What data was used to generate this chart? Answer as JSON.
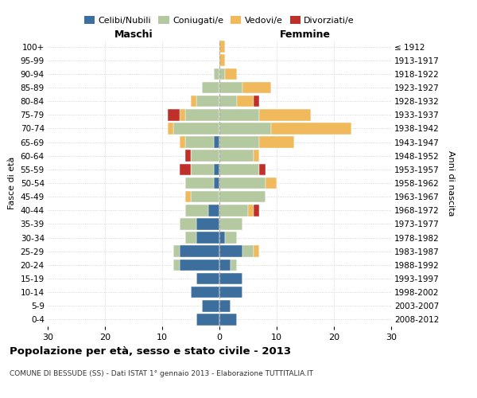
{
  "age_groups": [
    "0-4",
    "5-9",
    "10-14",
    "15-19",
    "20-24",
    "25-29",
    "30-34",
    "35-39",
    "40-44",
    "45-49",
    "50-54",
    "55-59",
    "60-64",
    "65-69",
    "70-74",
    "75-79",
    "80-84",
    "85-89",
    "90-94",
    "95-99",
    "100+"
  ],
  "birth_years": [
    "2008-2012",
    "2003-2007",
    "1998-2002",
    "1993-1997",
    "1988-1992",
    "1983-1987",
    "1978-1982",
    "1973-1977",
    "1968-1972",
    "1963-1967",
    "1958-1962",
    "1953-1957",
    "1948-1952",
    "1943-1947",
    "1938-1942",
    "1933-1937",
    "1928-1932",
    "1923-1927",
    "1918-1922",
    "1913-1917",
    "≤ 1912"
  ],
  "males": {
    "celibi": [
      4,
      3,
      5,
      4,
      7,
      7,
      4,
      4,
      2,
      0,
      1,
      1,
      0,
      1,
      0,
      0,
      0,
      0,
      0,
      0,
      0
    ],
    "coniugati": [
      0,
      0,
      0,
      0,
      1,
      1,
      2,
      3,
      4,
      5,
      5,
      4,
      5,
      5,
      8,
      6,
      4,
      3,
      1,
      0,
      0
    ],
    "vedovi": [
      0,
      0,
      0,
      0,
      0,
      0,
      0,
      0,
      0,
      1,
      0,
      0,
      0,
      1,
      1,
      1,
      1,
      0,
      0,
      0,
      0
    ],
    "divorziati": [
      0,
      0,
      0,
      0,
      0,
      0,
      0,
      0,
      0,
      0,
      0,
      2,
      1,
      0,
      0,
      2,
      0,
      0,
      0,
      0,
      0
    ]
  },
  "females": {
    "nubili": [
      3,
      2,
      4,
      4,
      2,
      4,
      1,
      0,
      0,
      0,
      0,
      0,
      0,
      0,
      0,
      0,
      0,
      0,
      0,
      0,
      0
    ],
    "coniugate": [
      0,
      0,
      0,
      0,
      1,
      2,
      2,
      4,
      5,
      8,
      8,
      7,
      6,
      7,
      9,
      7,
      3,
      4,
      1,
      0,
      0
    ],
    "vedove": [
      0,
      0,
      0,
      0,
      0,
      1,
      0,
      0,
      1,
      0,
      2,
      0,
      1,
      6,
      14,
      9,
      3,
      5,
      2,
      1,
      1
    ],
    "divorziate": [
      0,
      0,
      0,
      0,
      0,
      0,
      0,
      0,
      1,
      0,
      0,
      1,
      0,
      0,
      0,
      0,
      1,
      0,
      0,
      0,
      0
    ]
  },
  "colors": {
    "celibi": "#3d6f9e",
    "coniugati": "#b5c9a1",
    "vedovi": "#f0b95b",
    "divorziati": "#c0302a"
  },
  "xlim": 30,
  "title": "Popolazione per età, sesso e stato civile - 2013",
  "subtitle": "COMUNE DI BESSUDE (SS) - Dati ISTAT 1° gennaio 2013 - Elaborazione TUTTITALIA.IT",
  "ylabel_left": "Fasce di età",
  "ylabel_right": "Anni di nascita",
  "xlabel_left": "Maschi",
  "xlabel_right": "Femmine"
}
